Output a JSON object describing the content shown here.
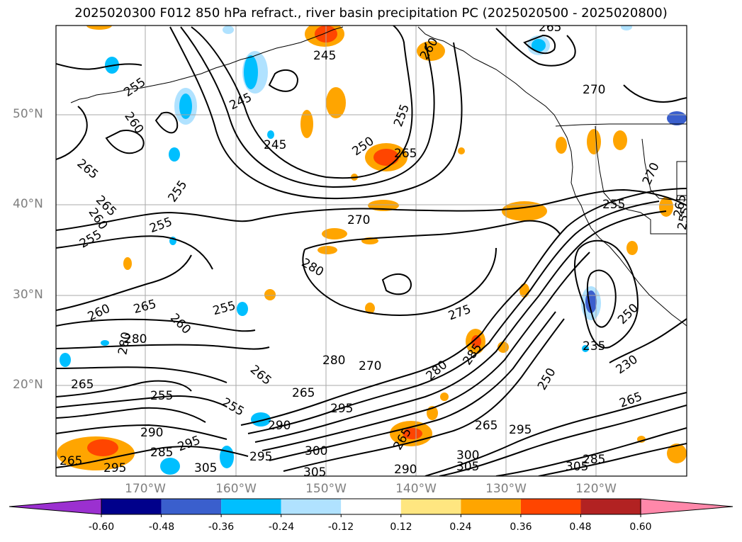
{
  "title": "2025020300 F012 850 hPa refract., river basin precipitation PC (2025020500 - 2025020800)",
  "axes": {
    "lat_labels": [
      "50°N",
      "40°N",
      "30°N",
      "20°N"
    ],
    "lon_labels": [
      "170°W",
      "160°W",
      "150°W",
      "140°W",
      "130°W",
      "120°W"
    ]
  },
  "contour_labels": [
    {
      "text": "245"
    },
    {
      "text": "265"
    },
    {
      "text": "260"
    },
    {
      "text": "255"
    },
    {
      "text": "270"
    },
    {
      "text": "245"
    },
    {
      "text": "245"
    },
    {
      "text": "250"
    },
    {
      "text": "255"
    },
    {
      "text": "265"
    },
    {
      "text": "260"
    },
    {
      "text": "265"
    },
    {
      "text": "255"
    },
    {
      "text": "265"
    },
    {
      "text": "255"
    },
    {
      "text": "260"
    },
    {
      "text": "255"
    },
    {
      "text": "255"
    },
    {
      "text": "270"
    },
    {
      "text": "270"
    },
    {
      "text": "255"
    },
    {
      "text": "265"
    },
    {
      "text": "280"
    },
    {
      "text": "260"
    },
    {
      "text": "265"
    },
    {
      "text": "255"
    },
    {
      "text": "250"
    },
    {
      "text": "275"
    },
    {
      "text": "260"
    },
    {
      "text": "280"
    },
    {
      "text": "235"
    },
    {
      "text": "280"
    },
    {
      "text": "270"
    },
    {
      "text": "265"
    },
    {
      "text": "230"
    },
    {
      "text": "250"
    },
    {
      "text": "285"
    },
    {
      "text": "295"
    },
    {
      "text": "290"
    },
    {
      "text": "265"
    },
    {
      "text": "295"
    },
    {
      "text": "265"
    },
    {
      "text": "290"
    },
    {
      "text": "295"
    },
    {
      "text": "285"
    },
    {
      "text": "300"
    },
    {
      "text": "305"
    },
    {
      "text": "290"
    },
    {
      "text": "295"
    },
    {
      "text": "305"
    },
    {
      "text": "295"
    },
    {
      "text": "265"
    },
    {
      "text": "300"
    },
    {
      "text": "305"
    },
    {
      "text": "305"
    },
    {
      "text": "285"
    },
    {
      "text": "265"
    },
    {
      "text": "280"
    },
    {
      "text": "280"
    },
    {
      "text": "255"
    },
    {
      "text": "255"
    },
    {
      "text": "265"
    },
    {
      "text": "265"
    },
    {
      "text": "265"
    }
  ],
  "colorbar": {
    "ticks": [
      "-0.60",
      "-0.48",
      "-0.36",
      "-0.24",
      "-0.12",
      "0.12",
      "0.24",
      "0.36",
      "0.48",
      "0.60"
    ],
    "colors": [
      "#9b30d0",
      "#00008b",
      "#3a5fcd",
      "#00bfff",
      "#b0e2ff",
      "#ffffff",
      "#ffe680",
      "#ffa500",
      "#ff4500",
      "#b22222",
      "#ff88aa"
    ]
  }
}
